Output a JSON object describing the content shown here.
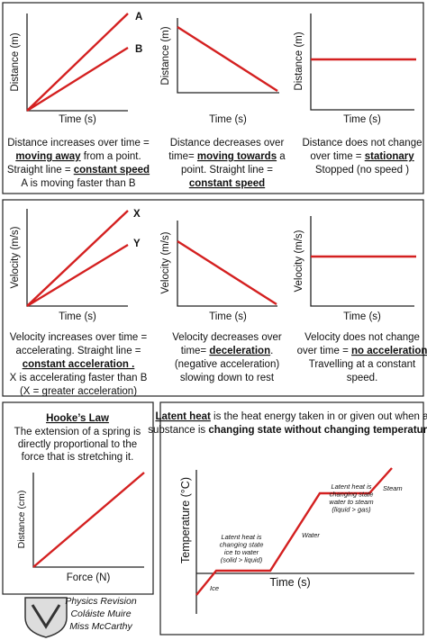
{
  "distance_time": {
    "y_axis_label": "Distance (m)",
    "x_axis_label": "Time (s)",
    "line_labels": [
      "A",
      "B"
    ],
    "captions": [
      [
        [
          "Distance increases over time ="
        ],
        [
          {
            "text": "moving away",
            "style": "bu"
          },
          " from a point."
        ],
        [
          "Straight line = ",
          {
            "text": "constant speed",
            "style": "bu"
          }
        ],
        [
          "A is moving faster than B"
        ]
      ],
      [
        [
          "Distance decreases over"
        ],
        [
          "time= ",
          {
            "text": "moving towards",
            "style": "bu"
          },
          " a"
        ],
        [
          "point. Straight line ="
        ],
        [
          {
            "text": "constant speed",
            "style": "bu"
          }
        ]
      ],
      [
        [
          "Distance does not change"
        ],
        [
          "over time = ",
          {
            "text": "stationary",
            "style": "bu"
          }
        ],
        [
          "Stopped (no speed )"
        ]
      ]
    ]
  },
  "velocity_time": {
    "y_axis_label": "Velocity (m/s)",
    "x_axis_label": "Time (s)",
    "line_labels": [
      "X",
      "Y"
    ],
    "captions": [
      [
        [
          "Velocity increases over time ="
        ],
        [
          "accelerating. Straight line ="
        ],
        [
          {
            "text": "constant acceleration .",
            "style": "bu"
          }
        ],
        [
          "X is accelerating faster than B"
        ],
        [
          "(X = greater acceleration)"
        ]
      ],
      [
        [
          "Velocity decreases over"
        ],
        [
          "time= ",
          {
            "text": "deceleration",
            "style": "bu"
          },
          "."
        ],
        [
          "(negative acceleration)"
        ],
        [
          "slowing down to rest"
        ]
      ],
      [
        [
          "Velocity does not change"
        ],
        [
          "over time = ",
          {
            "text": "no acceleration",
            "style": "bu"
          }
        ],
        [
          "Travelling at a constant"
        ],
        [
          "speed."
        ]
      ]
    ]
  },
  "hookes_law": {
    "title": "Hooke’s Law",
    "text_lines": [
      [
        "The extension of a spring is"
      ],
      [
        "directly proportional to the"
      ],
      [
        "force that is stretching it."
      ]
    ],
    "y_axis_label": "Distance (cm)",
    "x_axis_label": "Force (N)"
  },
  "latent_heat": {
    "text_lines": [
      [
        {
          "text": "Latent heat",
          "style": "bu"
        },
        " is the heat energy taken in or given out when a"
      ],
      [
        "substance is ",
        {
          "text": "changing state without changing temperature",
          "style": "b"
        },
        "."
      ]
    ],
    "y_axis_label": "Temperature (°C)",
    "x_axis_label": "Time (s)",
    "melting_note": [
      [
        "Latent heat is"
      ],
      [
        "changing state"
      ],
      [
        "ice to water"
      ],
      [
        "(solid > liquid)"
      ]
    ],
    "boiling_note": [
      [
        "Latent heat is"
      ],
      [
        "changing state"
      ],
      [
        "water to steam"
      ],
      [
        "(liquid > gas)"
      ]
    ],
    "ice": "Ice",
    "water": "Water",
    "steam": "Steam"
  },
  "footer": {
    "lines": [
      [
        "Physics Revision"
      ],
      [
        "Coláiste Muire"
      ],
      [
        "Miss McCarthy"
      ]
    ]
  }
}
